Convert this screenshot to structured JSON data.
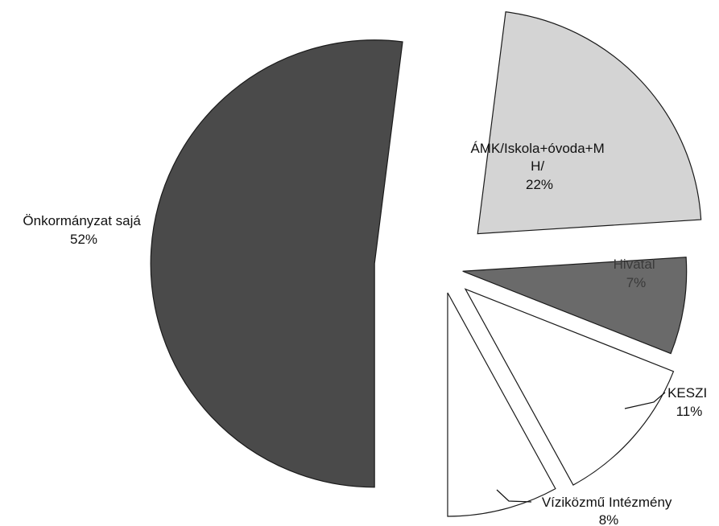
{
  "chart_data": {
    "type": "pie",
    "exploded": true,
    "slices": [
      {
        "name": "Önkormányzat sajá",
        "value": 52,
        "label_lines": [
          "Önkormányzat sajá",
          "52%"
        ],
        "color": "#4a4a4a"
      },
      {
        "name": "ÁMK/Iskola+óvoda+MH/",
        "value": 22,
        "label_lines": [
          "ÁMK/Iskola+óvoda+M",
          "H/",
          "22%"
        ],
        "color": "#d4d4d4"
      },
      {
        "name": "Hivatal",
        "value": 7,
        "label_lines": [
          "Hivatal",
          "7%"
        ],
        "color": "#6a6a6a"
      },
      {
        "name": "KESZI",
        "value": 11,
        "label_lines": [
          "KESZI",
          "11%"
        ],
        "color": "#ffffff"
      },
      {
        "name": "Víziközmű Intézmény",
        "value": 8,
        "label_lines": [
          "Víziközmű Intézmény",
          "8%"
        ],
        "color": "#ffffff"
      }
    ]
  }
}
